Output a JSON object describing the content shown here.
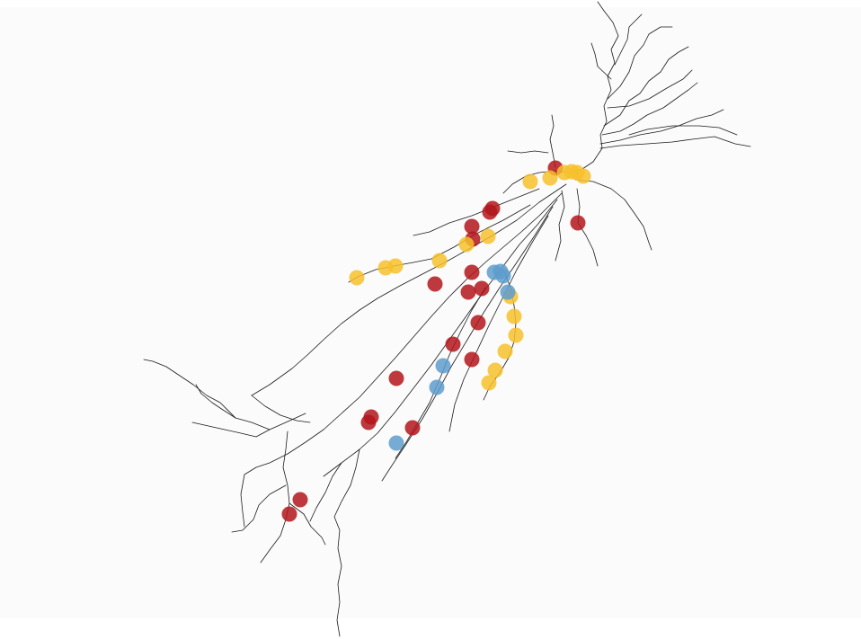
{
  "figure": {
    "background": "#fafbfa",
    "branch_color": "#1a1a1a",
    "marker_colors": {
      "red": "#b3161c",
      "yellow": "#f7c12b",
      "blue": "#5e9ccc"
    }
  }
}
